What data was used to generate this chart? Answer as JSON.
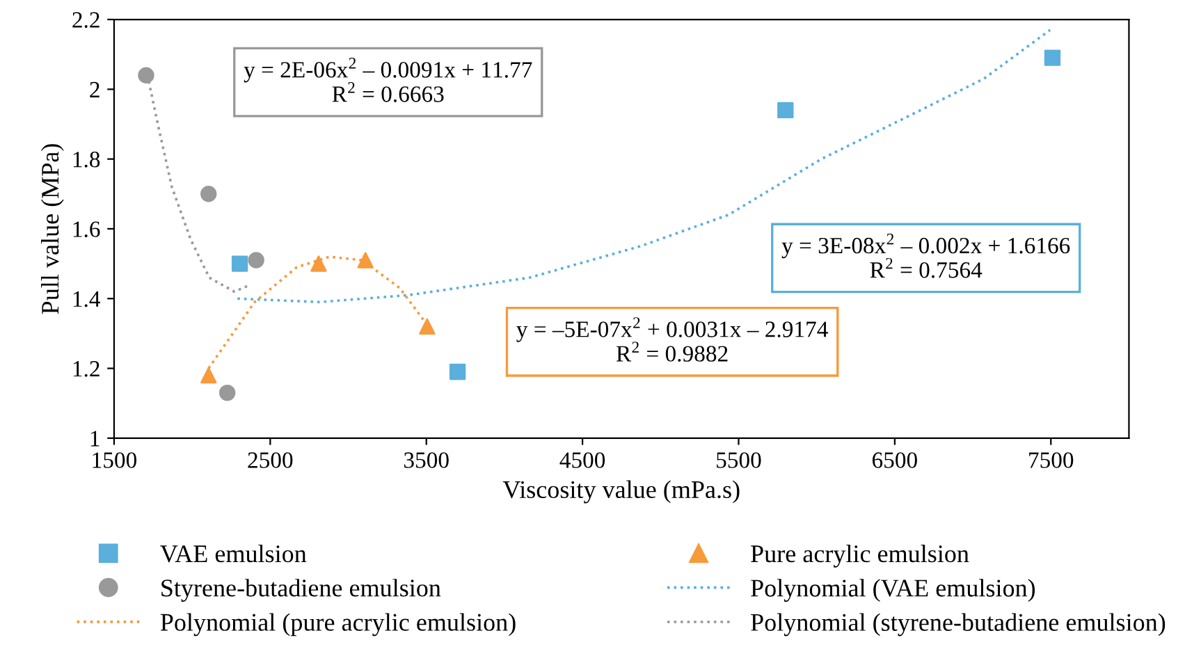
{
  "chart_data": {
    "type": "scatter",
    "xlabel": "Viscosity value (mPa.s)",
    "ylabel": "Pull value (MPa)",
    "xlim": [
      1500,
      8000
    ],
    "xticks": [
      1500,
      2500,
      3500,
      4500,
      5500,
      6500,
      7500
    ],
    "ylim": [
      1,
      2.2
    ],
    "yticks": [
      1,
      {
        "value": 1.2,
        "label": "1.2"
      },
      {
        "value": 1.4,
        "label": "1.4"
      },
      {
        "value": 1.6,
        "label": "1.6"
      },
      {
        "value": 1.8,
        "label": "1.8"
      },
      2,
      {
        "value": 2.2,
        "label": "2.2"
      }
    ],
    "grid": false,
    "legend": "bottom",
    "series": [
      {
        "name": "VAE emulsion",
        "marker": "square",
        "color": "#5aafdc",
        "x": [
          2305,
          3700,
          5800,
          7510
        ],
        "values": [
          1.5,
          1.19,
          1.94,
          2.09
        ]
      },
      {
        "name": "Pure acrylic emulsion",
        "marker": "triangle",
        "color": "#f79a3c",
        "x": [
          2105,
          2810,
          3110,
          3505
        ],
        "values": [
          1.18,
          1.5,
          1.51,
          1.32
        ]
      },
      {
        "name": "Styrene-butadiene emulsion",
        "marker": "circle",
        "color": "#999999",
        "x": [
          1705,
          2105,
          2410,
          2225
        ],
        "values": [
          2.04,
          1.7,
          1.51,
          1.13
        ]
      },
      {
        "name": "Polynomial (VAE emulsion)",
        "type": "line",
        "line_style": "dotted",
        "color": "#5aafdc",
        "x": [
          2290,
          2820,
          3385,
          4160,
          4870,
          5435,
          6030,
          6620,
          7070,
          7495
        ],
        "values": [
          1.4,
          1.39,
          1.41,
          1.46,
          1.55,
          1.64,
          1.8,
          1.93,
          2.03,
          2.17
        ]
      },
      {
        "name": "Polynomial (pure acrylic emulsion)",
        "type": "line",
        "line_style": "dotted",
        "color": "#f79a3c",
        "x": [
          2105,
          2400,
          2670,
          2880,
          3090,
          3330,
          3480
        ],
        "values": [
          1.2,
          1.39,
          1.49,
          1.52,
          1.51,
          1.43,
          1.34
        ]
      },
      {
        "name": "Polynomial (styrene-butadiene emulsion)",
        "type": "line",
        "line_style": "dotted",
        "color": "#999999",
        "x": [
          1705,
          1780,
          1870,
          1990,
          2110,
          2270,
          2375
        ],
        "values": [
          2.06,
          1.9,
          1.72,
          1.57,
          1.46,
          1.42,
          1.44
        ]
      }
    ],
    "annotations": [
      "y = 2E-06x$^{2}$ – 0.0091x + 11.77\nR$^{2}$ = 0.6663",
      "y = 3E-08x$^{2}$ – 0.002x + 1.6166\nR$^{2}$ = 0.7564",
      "y = –5E-07x$^{2}$ + 0.0031x – 2.9174\nR$^{2}$ = 0.9882"
    ]
  }
}
